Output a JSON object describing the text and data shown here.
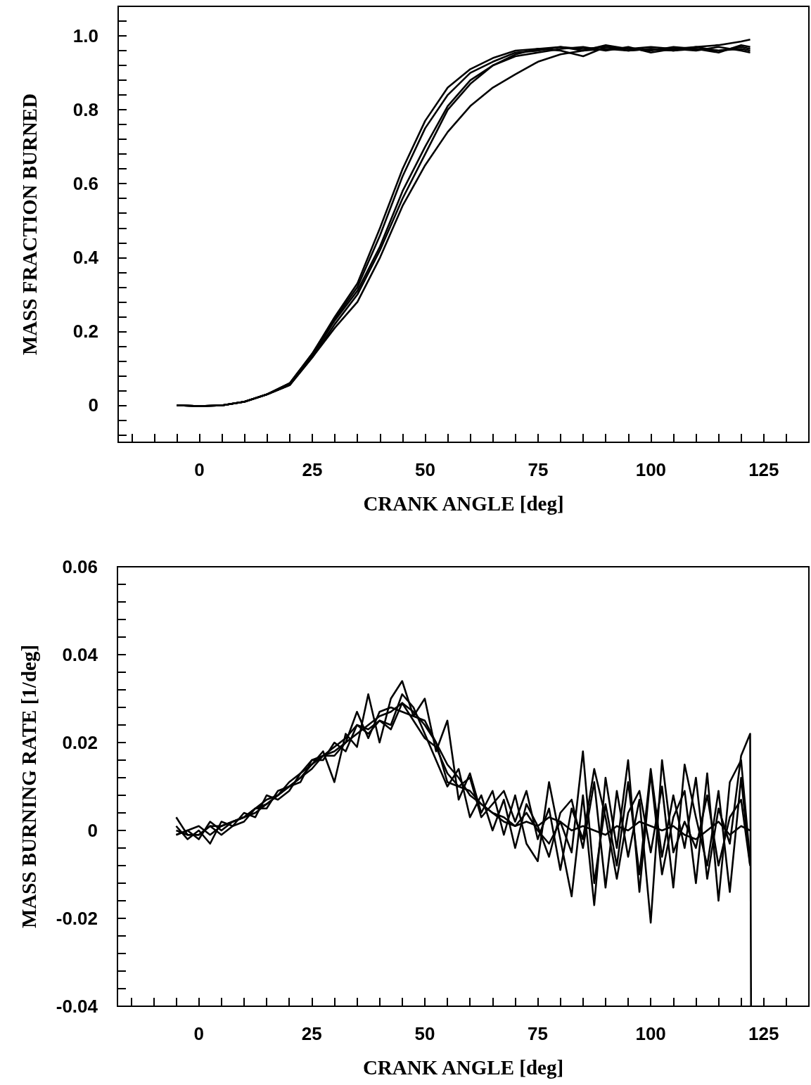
{
  "chart_data": [
    {
      "type": "line",
      "xlabel": "CRANK ANGLE [deg]",
      "ylabel": "MASS FRACTION BURNED",
      "x": [
        -5,
        0,
        5,
        10,
        15,
        20,
        25,
        30,
        35,
        40,
        45,
        50,
        55,
        60,
        65,
        70,
        75,
        80,
        85,
        90,
        95,
        100,
        105,
        110,
        115,
        120,
        122
      ],
      "series": [
        {
          "color": "#000000",
          "values": [
            0,
            -0.002,
            0,
            0.01,
            0.03,
            0.06,
            0.14,
            0.24,
            0.33,
            0.48,
            0.64,
            0.77,
            0.86,
            0.91,
            0.94,
            0.96,
            0.965,
            0.97,
            0.965,
            0.97,
            0.965,
            0.97,
            0.965,
            0.97,
            0.975,
            0.985,
            0.99
          ]
        },
        {
          "color": "#000000",
          "values": [
            0,
            -0.002,
            0,
            0.01,
            0.03,
            0.06,
            0.14,
            0.235,
            0.32,
            0.46,
            0.62,
            0.75,
            0.84,
            0.9,
            0.93,
            0.955,
            0.96,
            0.97,
            0.96,
            0.975,
            0.965,
            0.96,
            0.97,
            0.965,
            0.955,
            0.975,
            0.97
          ]
        },
        {
          "color": "#000000",
          "values": [
            0,
            -0.002,
            0,
            0.01,
            0.03,
            0.055,
            0.135,
            0.23,
            0.31,
            0.43,
            0.58,
            0.7,
            0.81,
            0.88,
            0.92,
            0.95,
            0.965,
            0.96,
            0.945,
            0.97,
            0.96,
            0.965,
            0.96,
            0.97,
            0.96,
            0.965,
            0.96
          ]
        },
        {
          "color": "#000000",
          "values": [
            0,
            -0.002,
            0,
            0.01,
            0.03,
            0.055,
            0.13,
            0.22,
            0.3,
            0.42,
            0.56,
            0.68,
            0.8,
            0.87,
            0.92,
            0.945,
            0.955,
            0.965,
            0.97,
            0.96,
            0.97,
            0.955,
            0.965,
            0.96,
            0.97,
            0.96,
            0.955
          ]
        },
        {
          "color": "#000000",
          "values": [
            0,
            -0.002,
            0,
            0.01,
            0.03,
            0.055,
            0.13,
            0.21,
            0.28,
            0.4,
            0.54,
            0.65,
            0.74,
            0.81,
            0.86,
            0.896,
            0.93,
            0.95,
            0.96,
            0.965,
            0.96,
            0.965,
            0.96,
            0.965,
            0.96,
            0.97,
            0.965
          ]
        }
      ],
      "xlim": [
        -18,
        135
      ],
      "xticks": [
        {
          "value": -15,
          "label": null
        },
        {
          "value": -10,
          "label": null
        },
        {
          "value": -5,
          "label": null
        },
        0,
        {
          "value": 5,
          "label": null
        },
        {
          "value": 10,
          "label": null
        },
        {
          "value": 15,
          "label": null
        },
        {
          "value": 20,
          "label": null
        },
        25,
        {
          "value": 30,
          "label": null
        },
        {
          "value": 35,
          "label": null
        },
        {
          "value": 40,
          "label": null
        },
        {
          "value": 45,
          "label": null
        },
        50,
        {
          "value": 55,
          "label": null
        },
        {
          "value": 60,
          "label": null
        },
        {
          "value": 65,
          "label": null
        },
        {
          "value": 70,
          "label": null
        },
        75,
        {
          "value": 80,
          "label": null
        },
        {
          "value": 85,
          "label": null
        },
        {
          "value": 90,
          "label": null
        },
        {
          "value": 95,
          "label": null
        },
        100,
        {
          "value": 105,
          "label": null
        },
        {
          "value": 110,
          "label": null
        },
        {
          "value": 115,
          "label": null
        },
        {
          "value": 120,
          "label": null
        },
        125,
        {
          "value": 130,
          "label": null
        }
      ],
      "ylim": [
        -0.1,
        1.08
      ],
      "yticks": [
        {
          "value": -0.08,
          "label": null
        },
        {
          "value": -0.04,
          "label": null
        },
        0,
        {
          "value": 0.04,
          "label": null
        },
        {
          "value": 0.08,
          "label": null
        },
        {
          "value": 0.12,
          "label": null
        },
        {
          "value": 0.16,
          "label": null
        },
        0.2,
        {
          "value": 0.24,
          "label": null
        },
        {
          "value": 0.28,
          "label": null
        },
        {
          "value": 0.32,
          "label": null
        },
        {
          "value": 0.36,
          "label": null
        },
        0.4,
        {
          "value": 0.44,
          "label": null
        },
        {
          "value": 0.48,
          "label": null
        },
        {
          "value": 0.52,
          "label": null
        },
        {
          "value": 0.56,
          "label": null
        },
        0.6,
        {
          "value": 0.64,
          "label": null
        },
        {
          "value": 0.68,
          "label": null
        },
        {
          "value": 0.72,
          "label": null
        },
        {
          "value": 0.76,
          "label": null
        },
        0.8,
        {
          "value": 0.84,
          "label": null
        },
        {
          "value": 0.88,
          "label": null
        },
        {
          "value": 0.92,
          "label": null
        },
        {
          "value": 0.96,
          "label": null
        },
        {
          "value": 1,
          "label": "1.0"
        },
        {
          "value": 1.04,
          "label": null
        }
      ]
    },
    {
      "type": "line",
      "xlabel": "CRANK ANGLE [deg]",
      "ylabel": "MASS BURNING RATE [1/deg]",
      "x": [
        -5,
        -2.5,
        0,
        2.5,
        5,
        7.5,
        10,
        12.5,
        15,
        17.5,
        20,
        22.5,
        25,
        27.5,
        30,
        32.5,
        35,
        37.5,
        40,
        42.5,
        45,
        47.5,
        50,
        52.5,
        55,
        57.5,
        60,
        62.5,
        65,
        67.5,
        70,
        72.5,
        75,
        77.5,
        80,
        82.5,
        85,
        87.5,
        90,
        92.5,
        95,
        97.5,
        100,
        102.5,
        105,
        107.5,
        110,
        112.5,
        115,
        117.5,
        120,
        122
      ],
      "series": [
        {
          "color": "#000000",
          "x": [
            -5,
            -2.5,
            0,
            2.5,
            5,
            7.5,
            10,
            12.5,
            15,
            17.5,
            20,
            22.5,
            25,
            27.5,
            30,
            32.5,
            35,
            37.5,
            40,
            42.5,
            45,
            47.5,
            50,
            52.5,
            55,
            57.5,
            60,
            62.5,
            65,
            67.5,
            70,
            72.5,
            75,
            77.5,
            80,
            82.5,
            85,
            87.5,
            90,
            92.5,
            95,
            97.5,
            100,
            102.5,
            105,
            107.5,
            110,
            112.5,
            115,
            117.5,
            120,
            122,
            122.2
          ],
          "values": [
            0.003,
            -0.001,
            -0.001,
            0.001,
            0.001,
            0.002,
            0.003,
            0.004,
            0.006,
            0.008,
            0.01,
            0.012,
            0.014,
            0.017,
            0.018,
            0.02,
            0.022,
            0.024,
            0.026,
            0.027,
            0.029,
            0.027,
            0.024,
            0.02,
            0.015,
            0.012,
            0.008,
            0.006,
            0.004,
            0.002,
            0.001,
            0.004,
            0,
            -0.003,
            0.002,
            -0.005,
            0.018,
            -0.012,
            0.006,
            -0.008,
            0.011,
            -0.01,
            0.014,
            -0.006,
            0.008,
            -0.004,
            0.012,
            -0.011,
            0.005,
            -0.003,
            0.017,
            0.022,
            -0.04
          ]
        },
        {
          "color": "#000000",
          "values": [
            -0.001,
            0,
            -0.002,
            0.002,
            0,
            0.002,
            0.003,
            0.005,
            0.007,
            0.008,
            0.011,
            0.013,
            0.015,
            0.018,
            0.011,
            0.022,
            0.019,
            0.031,
            0.02,
            0.03,
            0.034,
            0.026,
            0.03,
            0.018,
            0.025,
            0.007,
            0.013,
            0.004,
            0.009,
            -0.001,
            0.008,
            -0.003,
            -0.007,
            0.011,
            -0.002,
            -0.015,
            0.008,
            -0.017,
            0.012,
            -0.004,
            0.016,
            -0.014,
            0.013,
            -0.01,
            0.003,
            0.009,
            -0.012,
            0.013,
            -0.016,
            0.011,
            0.016,
            -0.007
          ]
        },
        {
          "color": "#000000",
          "values": [
            0.001,
            -0.002,
            0,
            -0.003,
            0.002,
            0.001,
            0.004,
            0.003,
            0.008,
            0.007,
            0.009,
            0.013,
            0.016,
            0.016,
            0.02,
            0.018,
            0.024,
            0.023,
            0.025,
            0.024,
            0.031,
            0.028,
            0.022,
            0.016,
            0.01,
            0.014,
            0.003,
            0.008,
            0,
            0.007,
            -0.004,
            0.006,
            0.001,
            -0.006,
            0.004,
            0.007,
            -0.004,
            0.011,
            -0.013,
            0.009,
            -0.006,
            0.007,
            -0.021,
            0.016,
            -0.005,
            0.002,
            -0.004,
            0.008,
            -0.008,
            0.003,
            0.007,
            -0.008
          ]
        },
        {
          "color": "#000000",
          "values": [
            -0.001,
            0,
            0.001,
            -0.001,
            0.001,
            0.002,
            0.003,
            0.005,
            0.006,
            0.008,
            0.01,
            0.012,
            0.015,
            0.017,
            0.019,
            0.021,
            0.024,
            0.022,
            0.025,
            0.023,
            0.029,
            0.025,
            0.021,
            0.019,
            0.013,
            0.01,
            0.009,
            0.006,
            0.004,
            0.003,
            0.001,
            0.002,
            0.001,
            0.003,
            0.002,
            0,
            0.001,
            0,
            -0.001,
            0.001,
            0,
            0.002,
            0.001,
            0,
            0.001,
            -0.001,
            -0.002,
            0,
            0.002,
            -0.001,
            0.001,
            0
          ]
        },
        {
          "color": "#000000",
          "values": [
            0,
            -0.001,
            -0.001,
            0.001,
            -0.001,
            0.001,
            0.002,
            0.005,
            0.005,
            0.009,
            0.01,
            0.011,
            0.016,
            0.017,
            0.017,
            0.02,
            0.027,
            0.021,
            0.027,
            0.028,
            0.027,
            0.026,
            0.025,
            0.02,
            0.011,
            0.01,
            0.012,
            0.003,
            0.006,
            0.009,
            0.002,
            0.009,
            -0.002,
            0.005,
            -0.009,
            0.005,
            -0.002,
            0.014,
            0.003,
            -0.011,
            0.004,
            0.009,
            -0.005,
            0.01,
            -0.013,
            0.015,
            0.003,
            -0.008,
            0.009,
            -0.014,
            0.012,
            -0.008
          ]
        }
      ],
      "xlim": [
        -18,
        135
      ],
      "xticks": [
        {
          "value": -15,
          "label": null
        },
        {
          "value": -10,
          "label": null
        },
        {
          "value": -5,
          "label": null
        },
        0,
        {
          "value": 5,
          "label": null
        },
        {
          "value": 10,
          "label": null
        },
        {
          "value": 15,
          "label": null
        },
        {
          "value": 20,
          "label": null
        },
        25,
        {
          "value": 30,
          "label": null
        },
        {
          "value": 35,
          "label": null
        },
        {
          "value": 40,
          "label": null
        },
        {
          "value": 45,
          "label": null
        },
        50,
        {
          "value": 55,
          "label": null
        },
        {
          "value": 60,
          "label": null
        },
        {
          "value": 65,
          "label": null
        },
        {
          "value": 70,
          "label": null
        },
        75,
        {
          "value": 80,
          "label": null
        },
        {
          "value": 85,
          "label": null
        },
        {
          "value": 90,
          "label": null
        },
        {
          "value": 95,
          "label": null
        },
        100,
        {
          "value": 105,
          "label": null
        },
        {
          "value": 110,
          "label": null
        },
        {
          "value": 115,
          "label": null
        },
        {
          "value": 120,
          "label": null
        },
        125,
        {
          "value": 130,
          "label": null
        }
      ],
      "ylim": [
        -0.04,
        0.06
      ],
      "yticks": [
        -0.04,
        {
          "value": -0.036,
          "label": null
        },
        {
          "value": -0.032,
          "label": null
        },
        {
          "value": -0.028,
          "label": null
        },
        {
          "value": -0.024,
          "label": null
        },
        -0.02,
        {
          "value": -0.016,
          "label": null
        },
        {
          "value": -0.012,
          "label": null
        },
        {
          "value": -0.008,
          "label": null
        },
        {
          "value": -0.004,
          "label": null
        },
        0,
        {
          "value": 0.004,
          "label": null
        },
        {
          "value": 0.008,
          "label": null
        },
        {
          "value": 0.012,
          "label": null
        },
        {
          "value": 0.016,
          "label": null
        },
        0.02,
        {
          "value": 0.024,
          "label": null
        },
        {
          "value": 0.028,
          "label": null
        },
        {
          "value": 0.032,
          "label": null
        },
        {
          "value": 0.036,
          "label": null
        },
        0.04,
        {
          "value": 0.044,
          "label": null
        },
        {
          "value": 0.048,
          "label": null
        },
        {
          "value": 0.052,
          "label": null
        },
        {
          "value": 0.056,
          "label": null
        },
        0.06
      ]
    }
  ]
}
